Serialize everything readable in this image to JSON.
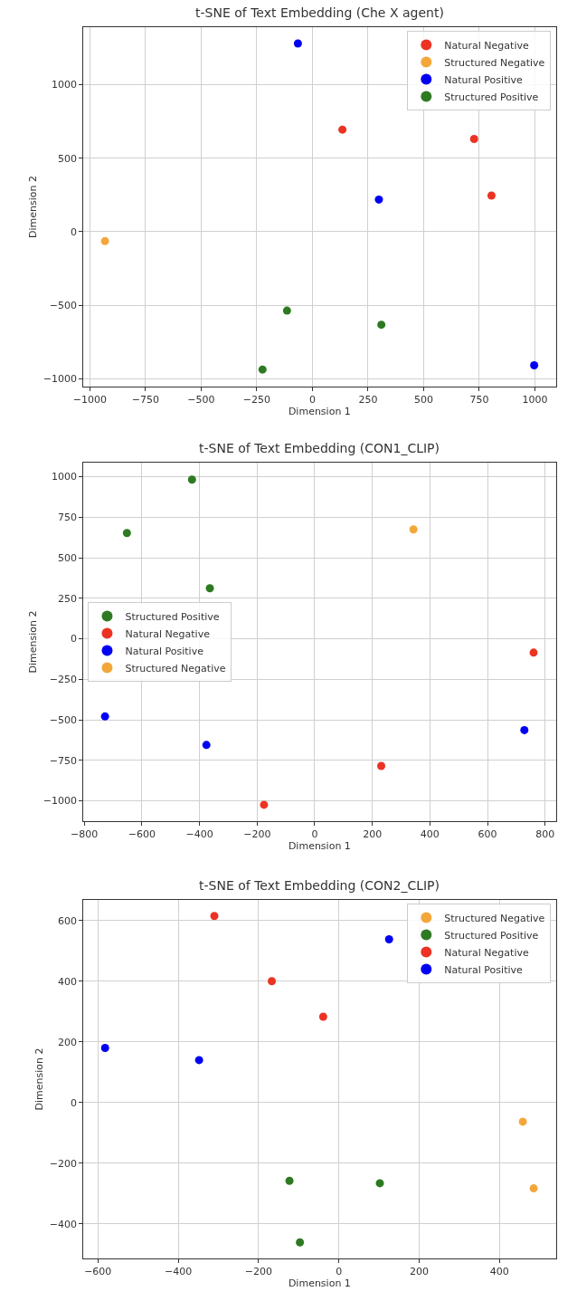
{
  "chart_data": [
    {
      "type": "scatter",
      "title": "t-SNE of Text Embedding (Che X agent)",
      "xlabel": "Dimension 1",
      "ylabel": "Dimension 2",
      "xlim": [
        -1029,
        1094
      ],
      "ylim": [
        -1054,
        1392
      ],
      "xticks": [
        -1000,
        -750,
        -500,
        -250,
        0,
        250,
        500,
        750,
        1000
      ],
      "yticks": [
        -1000,
        -500,
        0,
        500,
        1000
      ],
      "grid": true,
      "legend": "top right",
      "marker": "circle",
      "series": [
        {
          "name": "Natural Negative",
          "color": "#ec3323",
          "x": [
            135,
            727,
            805
          ],
          "values": [
            695,
            631,
            246
          ]
        },
        {
          "name": "Structured Negative",
          "color": "#f3a73b",
          "x": [
            -932
          ],
          "values": [
            -64
          ]
        },
        {
          "name": "Natural Positive",
          "color": "#0000f5",
          "x": [
            -65,
            299,
            997
          ],
          "values": [
            1281,
            219,
            -909
          ]
        },
        {
          "name": "Structured Positive",
          "color": "#2e7a22",
          "x": [
            -114,
            310,
            -224
          ],
          "values": [
            -537,
            -633,
            -938
          ]
        }
      ]
    },
    {
      "type": "scatter",
      "title": "t-SNE of Text Embedding (CON1_CLIP)",
      "xlabel": "Dimension 1",
      "ylabel": "Dimension 2",
      "xlim": [
        -803,
        837
      ],
      "ylim": [
        -1125,
        1087
      ],
      "xticks": [
        -800,
        -600,
        -400,
        -200,
        0,
        200,
        400,
        600,
        800
      ],
      "yticks": [
        -1000,
        -750,
        -500,
        -250,
        0,
        250,
        500,
        750,
        1000
      ],
      "grid": true,
      "legend": "left",
      "marker": "circle",
      "series": [
        {
          "name": "Structured Positive",
          "color": "#2e7a22",
          "x": [
            -426,
            -652,
            -364
          ],
          "values": [
            982,
            653,
            312
          ]
        },
        {
          "name": "Natural Negative",
          "color": "#ec3323",
          "x": [
            760,
            231,
            -176
          ],
          "values": [
            -85,
            -784,
            -1024
          ]
        },
        {
          "name": "Natural Positive",
          "color": "#0000f5",
          "x": [
            -728,
            -376,
            728
          ],
          "values": [
            -479,
            -655,
            -563
          ]
        },
        {
          "name": "Structured Negative",
          "color": "#f3a73b",
          "x": [
            343
          ],
          "values": [
            675
          ]
        }
      ]
    },
    {
      "type": "scatter",
      "title": "t-SNE of Text Embedding (CON2_CLIP)",
      "xlabel": "Dimension 1",
      "ylabel": "Dimension 2",
      "xlim": [
        -636,
        540
      ],
      "ylim": [
        -514,
        668
      ],
      "xticks": [
        -600,
        -400,
        -200,
        0,
        200,
        400
      ],
      "yticks": [
        -400,
        -200,
        0,
        200,
        400,
        600
      ],
      "grid": true,
      "legend": "top right",
      "marker": "circle",
      "series": [
        {
          "name": "Structured Negative",
          "color": "#f3a73b",
          "x": [
            458,
            485
          ],
          "values": [
            -63,
            -283
          ]
        },
        {
          "name": "Structured Positive",
          "color": "#2e7a22",
          "x": [
            -123,
            102,
            -97
          ],
          "values": [
            -258,
            -266,
            -461
          ]
        },
        {
          "name": "Natural Negative",
          "color": "#ec3323",
          "x": [
            -310,
            -167,
            -39
          ],
          "values": [
            615,
            400,
            283
          ]
        },
        {
          "name": "Natural Positive",
          "color": "#0000f5",
          "x": [
            125,
            -582,
            -348
          ],
          "values": [
            538,
            180,
            140
          ]
        }
      ]
    }
  ]
}
